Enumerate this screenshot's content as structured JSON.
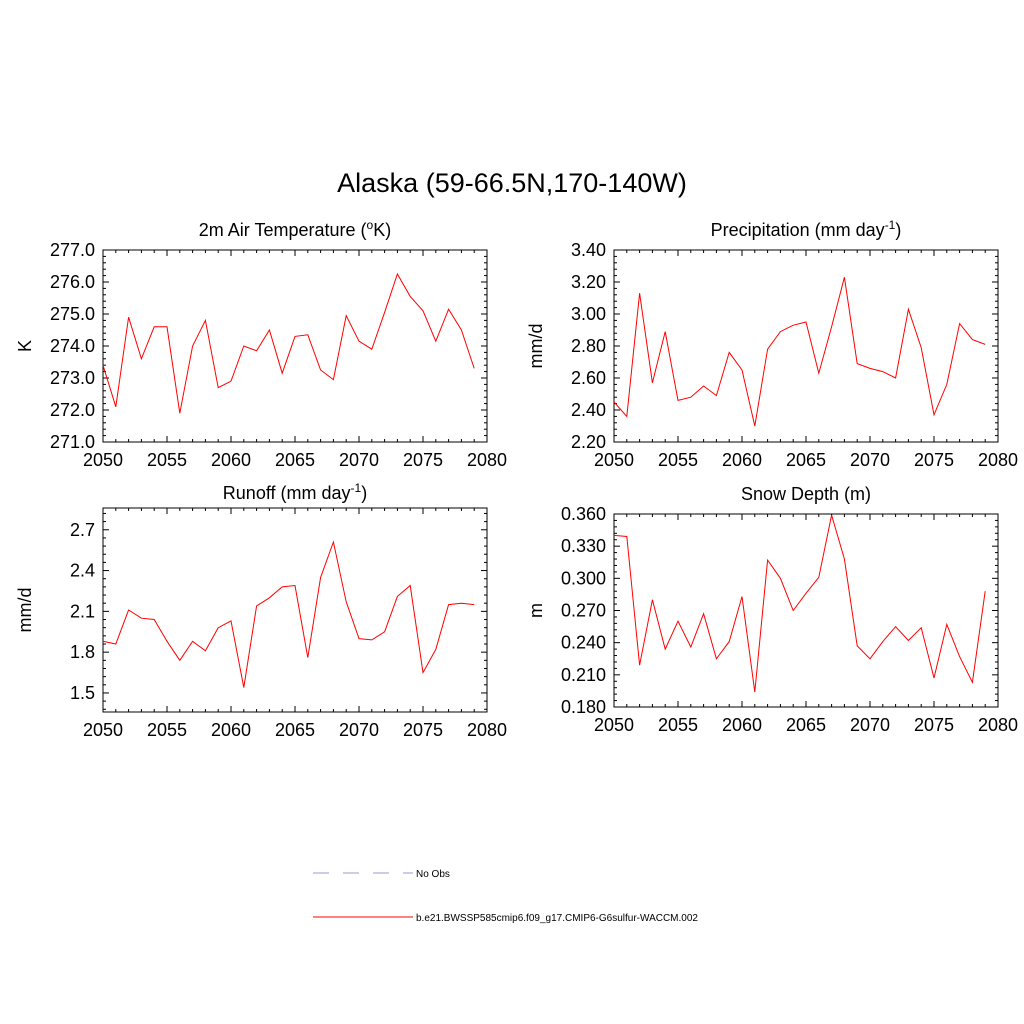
{
  "figure_title": "Alaska (59-66.5N,170-140W)",
  "legend": {
    "entries": [
      {
        "label": "No Obs",
        "color": "#9a9ad8",
        "style": "dashed"
      },
      {
        "label": "b.e21.BWSSP585cmip6.f09_g17.CMIP6-G6sulfur-WACCM.002",
        "color": "#ff0000",
        "style": "solid"
      }
    ]
  },
  "chart_data": [
    {
      "type": "line",
      "title": "2m Air Temperature (",
      "title_sup": "o",
      "title_tail": "K)",
      "ylabel": "K",
      "xlim": [
        2050,
        2080
      ],
      "ylim": [
        271.0,
        277.0
      ],
      "xticks": [
        2050,
        2055,
        2060,
        2065,
        2070,
        2075,
        2080
      ],
      "xtick_labels": [
        "2050",
        "2055",
        "2060",
        "2065",
        "2070",
        "2075",
        "2080"
      ],
      "yticks": [
        271.0,
        272.0,
        273.0,
        274.0,
        275.0,
        276.0,
        277.0
      ],
      "ytick_labels": [
        "271.0",
        "272.0",
        "273.0",
        "274.0",
        "275.0",
        "276.0",
        "277.0"
      ],
      "series": [
        {
          "color": "#ff0000",
          "x": [
            2050,
            2051,
            2052,
            2053,
            2054,
            2055,
            2056,
            2057,
            2058,
            2059,
            2060,
            2061,
            2062,
            2063,
            2064,
            2065,
            2066,
            2067,
            2068,
            2069,
            2070,
            2071,
            2072,
            2073,
            2074,
            2075,
            2076,
            2077,
            2078,
            2079
          ],
          "y": [
            273.4,
            272.1,
            274.9,
            273.6,
            274.6,
            274.6,
            271.9,
            274.0,
            274.8,
            272.7,
            272.9,
            274.0,
            273.85,
            274.5,
            273.15,
            274.3,
            274.35,
            273.25,
            272.95,
            274.95,
            274.15,
            273.9,
            275.05,
            276.25,
            275.55,
            275.1,
            274.15,
            275.15,
            274.5,
            273.3
          ]
        }
      ]
    },
    {
      "type": "line",
      "title": "Precipitation (mm day",
      "title_sup": "-1",
      "title_tail": ")",
      "ylabel": "mm/d",
      "xlim": [
        2050,
        2080
      ],
      "ylim": [
        2.2,
        3.4
      ],
      "xticks": [
        2050,
        2055,
        2060,
        2065,
        2070,
        2075,
        2080
      ],
      "xtick_labels": [
        "2050",
        "2055",
        "2060",
        "2065",
        "2070",
        "2075",
        "2080"
      ],
      "yticks": [
        2.2,
        2.4,
        2.6,
        2.8,
        3.0,
        3.2,
        3.4
      ],
      "ytick_labels": [
        "2.20",
        "2.40",
        "2.60",
        "2.80",
        "3.00",
        "3.20",
        "3.40"
      ],
      "series": [
        {
          "color": "#ff0000",
          "x": [
            2050,
            2051,
            2052,
            2053,
            2054,
            2055,
            2056,
            2057,
            2058,
            2059,
            2060,
            2061,
            2062,
            2063,
            2064,
            2065,
            2066,
            2067,
            2068,
            2069,
            2070,
            2071,
            2072,
            2073,
            2074,
            2075,
            2076,
            2077,
            2078,
            2079
          ],
          "y": [
            2.45,
            2.36,
            3.13,
            2.57,
            2.89,
            2.46,
            2.48,
            2.55,
            2.49,
            2.76,
            2.65,
            2.3,
            2.78,
            2.89,
            2.93,
            2.95,
            2.63,
            2.92,
            3.23,
            2.69,
            2.66,
            2.64,
            2.6,
            3.03,
            2.79,
            2.37,
            2.56,
            2.94,
            2.84,
            2.81
          ]
        }
      ]
    },
    {
      "type": "line",
      "title": "Runoff (mm day",
      "title_sup": "-1",
      "title_tail": ")",
      "ylabel": "mm/d",
      "xlim": [
        2050,
        2080
      ],
      "ylim": [
        1.36,
        2.86
      ],
      "xticks": [
        2050,
        2055,
        2060,
        2065,
        2070,
        2075,
        2080
      ],
      "xtick_labels": [
        "2050",
        "2055",
        "2060",
        "2065",
        "2070",
        "2075",
        "2080"
      ],
      "yticks": [
        1.5,
        1.8,
        2.1,
        2.4,
        2.7
      ],
      "ytick_labels": [
        "1.5",
        "1.8",
        "2.1",
        "2.4",
        "2.7"
      ],
      "series": [
        {
          "color": "#ff0000",
          "x": [
            2050,
            2051,
            2052,
            2053,
            2054,
            2055,
            2056,
            2057,
            2058,
            2059,
            2060,
            2061,
            2062,
            2063,
            2064,
            2065,
            2066,
            2067,
            2068,
            2069,
            2070,
            2071,
            2072,
            2073,
            2074,
            2075,
            2076,
            2077,
            2078,
            2079
          ],
          "y": [
            1.88,
            1.86,
            2.11,
            2.05,
            2.04,
            1.88,
            1.74,
            1.88,
            1.81,
            1.98,
            2.03,
            1.54,
            2.14,
            2.2,
            2.28,
            2.29,
            1.76,
            2.35,
            2.61,
            2.17,
            1.9,
            1.89,
            1.95,
            2.21,
            2.29,
            1.65,
            1.82,
            2.15,
            2.16,
            2.15
          ]
        }
      ]
    },
    {
      "type": "line",
      "title": "Snow Depth (m)",
      "title_sup": "",
      "title_tail": "",
      "ylabel": "m",
      "xlim": [
        2050,
        2080
      ],
      "ylim": [
        0.18,
        0.36
      ],
      "xticks": [
        2050,
        2055,
        2060,
        2065,
        2070,
        2075,
        2080
      ],
      "xtick_labels": [
        "2050",
        "2055",
        "2060",
        "2065",
        "2070",
        "2075",
        "2080"
      ],
      "yticks": [
        0.18,
        0.21,
        0.24,
        0.27,
        0.3,
        0.33,
        0.36
      ],
      "ytick_labels": [
        "0.180",
        "0.210",
        "0.240",
        "0.270",
        "0.300",
        "0.330",
        "0.360"
      ],
      "series": [
        {
          "color": "#ff0000",
          "x": [
            2050,
            2051,
            2052,
            2053,
            2054,
            2055,
            2056,
            2057,
            2058,
            2059,
            2060,
            2061,
            2062,
            2063,
            2064,
            2065,
            2066,
            2067,
            2068,
            2069,
            2070,
            2071,
            2072,
            2073,
            2074,
            2075,
            2076,
            2077,
            2078,
            2079
          ],
          "y": [
            0.34,
            0.339,
            0.219,
            0.28,
            0.234,
            0.26,
            0.236,
            0.267,
            0.225,
            0.241,
            0.283,
            0.194,
            0.317,
            0.3,
            0.27,
            0.286,
            0.301,
            0.359,
            0.318,
            0.237,
            0.225,
            0.241,
            0.255,
            0.242,
            0.254,
            0.207,
            0.257,
            0.227,
            0.203,
            0.288
          ]
        }
      ]
    }
  ]
}
